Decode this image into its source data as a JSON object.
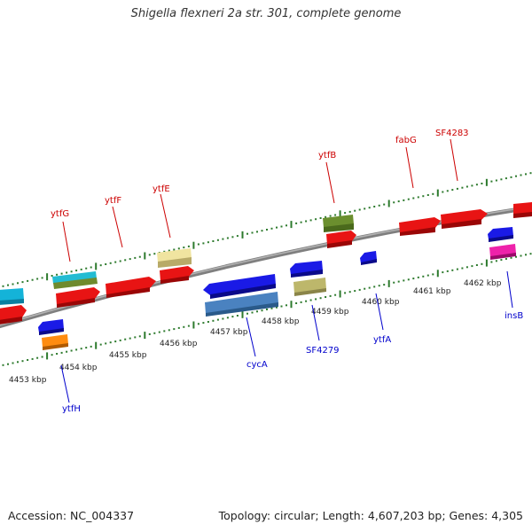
{
  "title": "Shigella flexneri 2a str. 301, complete genome",
  "footer": {
    "accession": "Accession: NC_004337",
    "topology": "Topology: circular; Length: 4,607,203 bp; Genes: 4,305"
  },
  "colors": {
    "forward_label": "#cc0000",
    "reverse_label": "#0000cc",
    "backbone": "#888888",
    "ticks": "#2d7a2d"
  },
  "ruler_ticks": [
    "4453 kbp",
    "4454 kbp",
    "4455 kbp",
    "4456 kbp",
    "4457 kbp",
    "4458 kbp",
    "4459 kbp",
    "4460 kbp",
    "4461 kbp",
    "4462 kbp"
  ],
  "forward_genes": [
    "ytfG",
    "ytfF",
    "ytfE",
    "ytfB",
    "fabG",
    "SF4283"
  ],
  "reverse_genes": [
    "ytfH",
    "cycA",
    "SF4279",
    "ytfA",
    "insB"
  ]
}
